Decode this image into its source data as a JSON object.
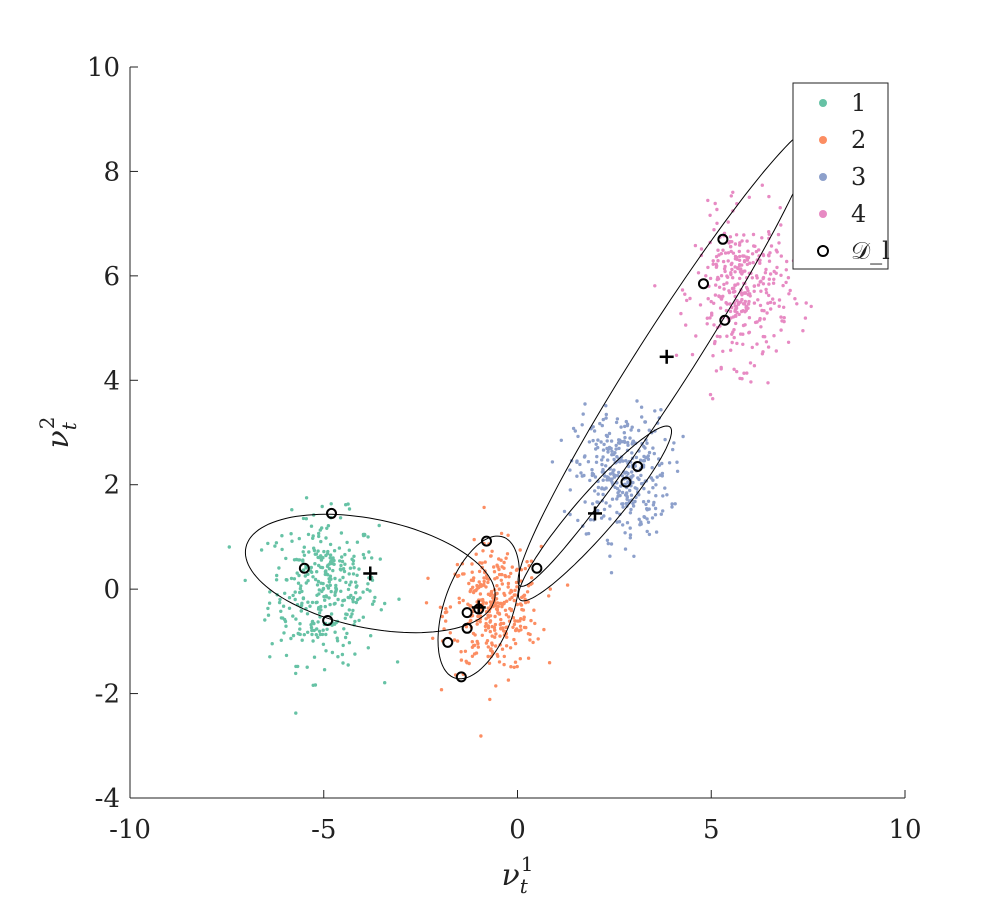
{
  "chart_data": {
    "type": "scatter",
    "xlabel": "ν_t^1",
    "ylabel": "ν_t^2",
    "xlim": [
      -10,
      10
    ],
    "ylim": [
      -4,
      10
    ],
    "xticks": [
      "-10",
      "-5",
      "0",
      "5",
      "10"
    ],
    "yticks": [
      "-4",
      "-2",
      "0",
      "2",
      "4",
      "6",
      "8",
      "10"
    ],
    "legend_position": "top-right",
    "grid": false,
    "clusters": [
      {
        "name": "1",
        "color": "#66c2a5",
        "center": [
          -5.0,
          0.0
        ],
        "spread": [
          0.7,
          0.7
        ],
        "count": 350
      },
      {
        "name": "2",
        "color": "#fc8d62",
        "center": [
          -0.6,
          -0.4
        ],
        "spread": [
          0.6,
          0.6
        ],
        "count": 350
      },
      {
        "name": "3",
        "color": "#8da0cb",
        "center": [
          2.7,
          2.2
        ],
        "spread": [
          0.6,
          0.6
        ],
        "count": 350
      },
      {
        "name": "4",
        "color": "#e78ac3",
        "center": [
          5.8,
          5.7
        ],
        "spread": [
          0.6,
          0.7
        ],
        "count": 350
      }
    ],
    "labeled_set": {
      "name": "𝒟_l",
      "points": [
        [
          -4.8,
          1.45
        ],
        [
          -5.5,
          0.4
        ],
        [
          -4.9,
          -0.6
        ],
        [
          -0.8,
          0.92
        ],
        [
          -1.3,
          -0.45
        ],
        [
          -1.0,
          -0.38
        ],
        [
          -1.3,
          -0.75
        ],
        [
          -1.8,
          -1.02
        ],
        [
          -1.45,
          -1.68
        ],
        [
          0.5,
          0.4
        ],
        [
          2.8,
          2.05
        ],
        [
          3.1,
          2.35
        ],
        [
          4.8,
          5.85
        ],
        [
          5.3,
          6.7
        ],
        [
          5.35,
          5.15
        ]
      ]
    },
    "component_means": [
      [
        -3.8,
        0.3
      ],
      [
        -1.0,
        -0.35
      ],
      [
        2.0,
        1.45
      ],
      [
        3.85,
        4.45
      ]
    ],
    "component_ellipses": [
      {
        "center": [
          -3.8,
          0.3
        ],
        "rx": 3.25,
        "ry": 1.05,
        "angle": -8
      },
      {
        "center": [
          -1.0,
          -0.35
        ],
        "rx": 1.5,
        "ry": 0.85,
        "angle": 60
      },
      {
        "center": [
          2.0,
          1.45
        ],
        "rx": 2.55,
        "ry": 0.45,
        "angle": 40
      },
      {
        "center": [
          3.85,
          4.45
        ],
        "rx": 5.8,
        "ry": 0.65,
        "angle": 49
      }
    ]
  }
}
